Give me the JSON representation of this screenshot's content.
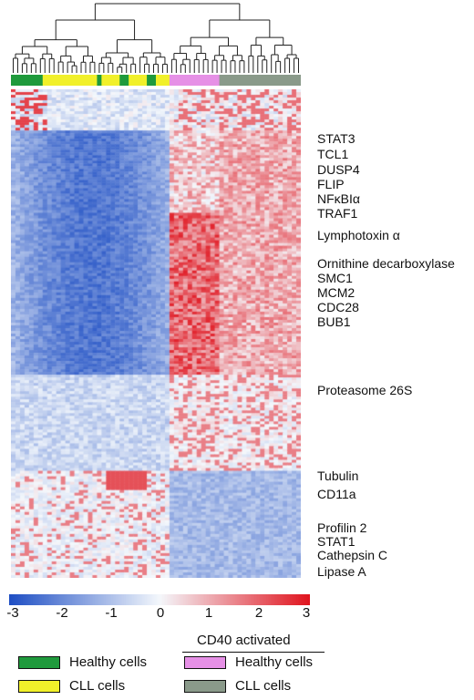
{
  "genes": [
    "STAT3",
    "TCL1",
    "DUSP4",
    "FLIP",
    "NFκBIα",
    "TRAF1",
    "Lymphotoxin α",
    "Ornithine decarboxylase",
    "SMC1",
    "MCM2",
    "CDC28",
    "BUB1",
    "Proteasome 26S",
    "Tubulin",
    "CD11a",
    "Profilin 2",
    "STAT1",
    "Cathepsin C",
    "Lipase A"
  ],
  "scale": {
    "ticks": [
      "-3",
      "-2",
      "-1",
      "0",
      "1",
      "2",
      "3"
    ],
    "min_color": "#1f4fc4",
    "mid_color": "#f4f8fc",
    "max_color": "#e0141e"
  },
  "legend": {
    "healthy": "Healthy cells",
    "cll": "CLL cells",
    "activated_title": "CD40 activated",
    "act_healthy": "Healthy cells",
    "act_cll": "CLL cells"
  },
  "colors": {
    "healthy": "#1f9a3c",
    "cll": "#f1f02a",
    "act_healthy": "#e690e6",
    "act_cll": "#8a9a8a"
  }
}
